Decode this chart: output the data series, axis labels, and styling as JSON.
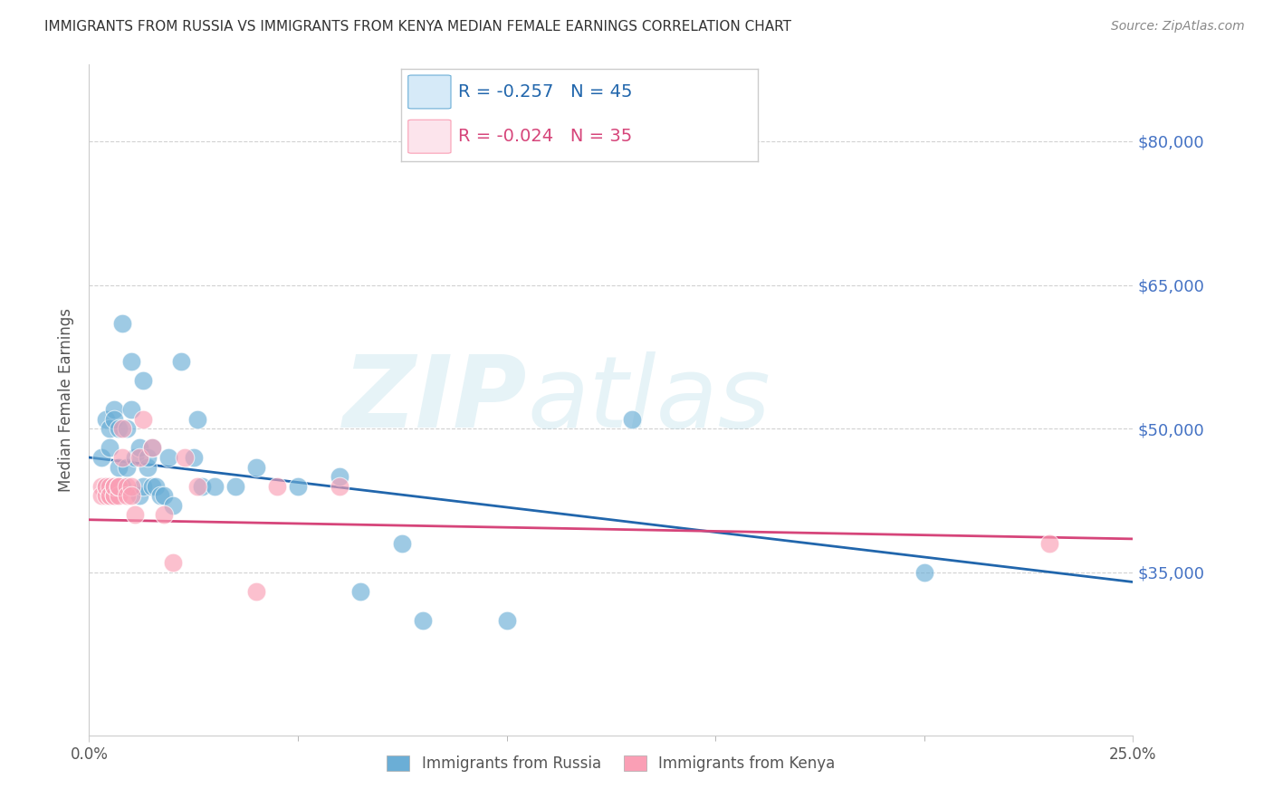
{
  "title": "IMMIGRANTS FROM RUSSIA VS IMMIGRANTS FROM KENYA MEDIAN FEMALE EARNINGS CORRELATION CHART",
  "source": "Source: ZipAtlas.com",
  "ylabel": "Median Female Earnings",
  "xlabel_ticks": [
    "0.0%",
    "25.0%"
  ],
  "ytick_labels": [
    "$35,000",
    "$50,000",
    "$65,000",
    "$80,000"
  ],
  "ytick_values": [
    35000,
    50000,
    65000,
    80000
  ],
  "xlim": [
    0.0,
    0.25
  ],
  "ylim": [
    18000,
    88000
  ],
  "russia_R": -0.257,
  "russia_N": 45,
  "kenya_R": -0.024,
  "kenya_N": 35,
  "russia_color": "#6baed6",
  "kenya_color": "#fa9fb5",
  "russia_line_color": "#2166ac",
  "kenya_line_color": "#d6457a",
  "watermark": "ZIPatlas",
  "russia_line_x0": 0.0,
  "russia_line_y0": 47000,
  "russia_line_x1": 0.25,
  "russia_line_y1": 34000,
  "kenya_line_x0": 0.0,
  "kenya_line_y0": 40500,
  "kenya_line_x1": 0.25,
  "kenya_line_y1": 38500,
  "russia_x": [
    0.003,
    0.004,
    0.004,
    0.005,
    0.005,
    0.006,
    0.006,
    0.007,
    0.007,
    0.007,
    0.008,
    0.008,
    0.009,
    0.009,
    0.01,
    0.01,
    0.011,
    0.012,
    0.012,
    0.013,
    0.013,
    0.014,
    0.014,
    0.015,
    0.015,
    0.016,
    0.017,
    0.018,
    0.019,
    0.02,
    0.022,
    0.025,
    0.026,
    0.027,
    0.03,
    0.035,
    0.04,
    0.05,
    0.06,
    0.065,
    0.075,
    0.08,
    0.1,
    0.13,
    0.2
  ],
  "russia_y": [
    47000,
    51000,
    44000,
    50000,
    48000,
    52000,
    51000,
    44000,
    46000,
    50000,
    44000,
    61000,
    46000,
    50000,
    57000,
    52000,
    47000,
    48000,
    43000,
    55000,
    44000,
    46000,
    47000,
    48000,
    44000,
    44000,
    43000,
    43000,
    47000,
    42000,
    57000,
    47000,
    51000,
    44000,
    44000,
    44000,
    46000,
    44000,
    45000,
    33000,
    38000,
    30000,
    30000,
    51000,
    35000
  ],
  "kenya_x": [
    0.003,
    0.003,
    0.004,
    0.004,
    0.004,
    0.005,
    0.005,
    0.005,
    0.006,
    0.006,
    0.006,
    0.006,
    0.006,
    0.007,
    0.007,
    0.007,
    0.007,
    0.008,
    0.008,
    0.009,
    0.009,
    0.01,
    0.01,
    0.011,
    0.012,
    0.013,
    0.015,
    0.018,
    0.02,
    0.023,
    0.026,
    0.04,
    0.045,
    0.06,
    0.23
  ],
  "kenya_y": [
    44000,
    43000,
    44000,
    43000,
    44000,
    43000,
    44000,
    43000,
    44000,
    43000,
    44000,
    43000,
    44000,
    44000,
    43000,
    44000,
    44000,
    50000,
    47000,
    44000,
    43000,
    44000,
    43000,
    41000,
    47000,
    51000,
    48000,
    41000,
    36000,
    47000,
    44000,
    33000,
    44000,
    44000,
    38000
  ]
}
